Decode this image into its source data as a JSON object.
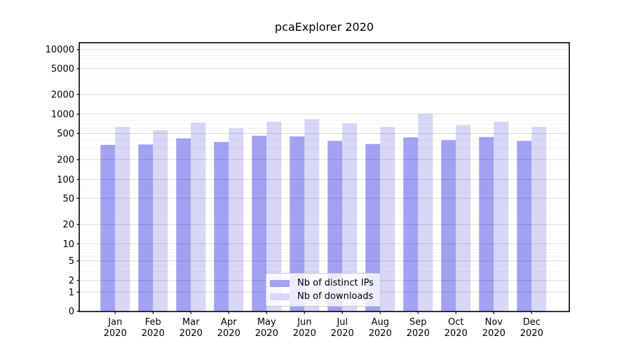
{
  "chart_data": {
    "type": "bar",
    "title": "pcaExplorer 2020",
    "categories": [
      "Jan 2020",
      "Feb 2020",
      "Mar 2020",
      "Apr 2020",
      "May 2020",
      "Jun 2020",
      "Jul 2020",
      "Aug 2020",
      "Sep 2020",
      "Oct 2020",
      "Nov 2020",
      "Dec 2020"
    ],
    "x_tick_months": [
      "Jan",
      "Feb",
      "Mar",
      "Apr",
      "May",
      "Jun",
      "Jul",
      "Aug",
      "Sep",
      "Oct",
      "Nov",
      "Dec"
    ],
    "x_tick_year": "2020",
    "series": [
      {
        "name": "Nb of distinct IPs",
        "color": "#a2a2f3",
        "values": [
          335,
          340,
          420,
          370,
          460,
          450,
          385,
          345,
          435,
          395,
          440,
          385
        ]
      },
      {
        "name": "Nb of downloads",
        "color": "#d7d7f8",
        "values": [
          630,
          560,
          735,
          600,
          765,
          830,
          720,
          630,
          1010,
          675,
          760,
          630
        ]
      }
    ],
    "y_axis": {
      "scale": "symlog",
      "ticks": [
        0,
        1,
        2,
        5,
        10,
        20,
        50,
        100,
        200,
        500,
        1000,
        2000,
        5000,
        10000
      ],
      "minor_tick_factors": [
        3,
        4,
        6,
        7,
        8,
        9
      ],
      "top_value": 12500
    },
    "legend": {
      "position": "lower center"
    },
    "grid": "horizontal major and minor"
  },
  "colors": {
    "background": "#ffffff",
    "axis": "#000000",
    "grid_major": "#d6d6d6",
    "grid_minor": "#efefef",
    "bar_distinct_ips": "#a2a2f3",
    "bar_downloads": "#d7d7f8"
  }
}
